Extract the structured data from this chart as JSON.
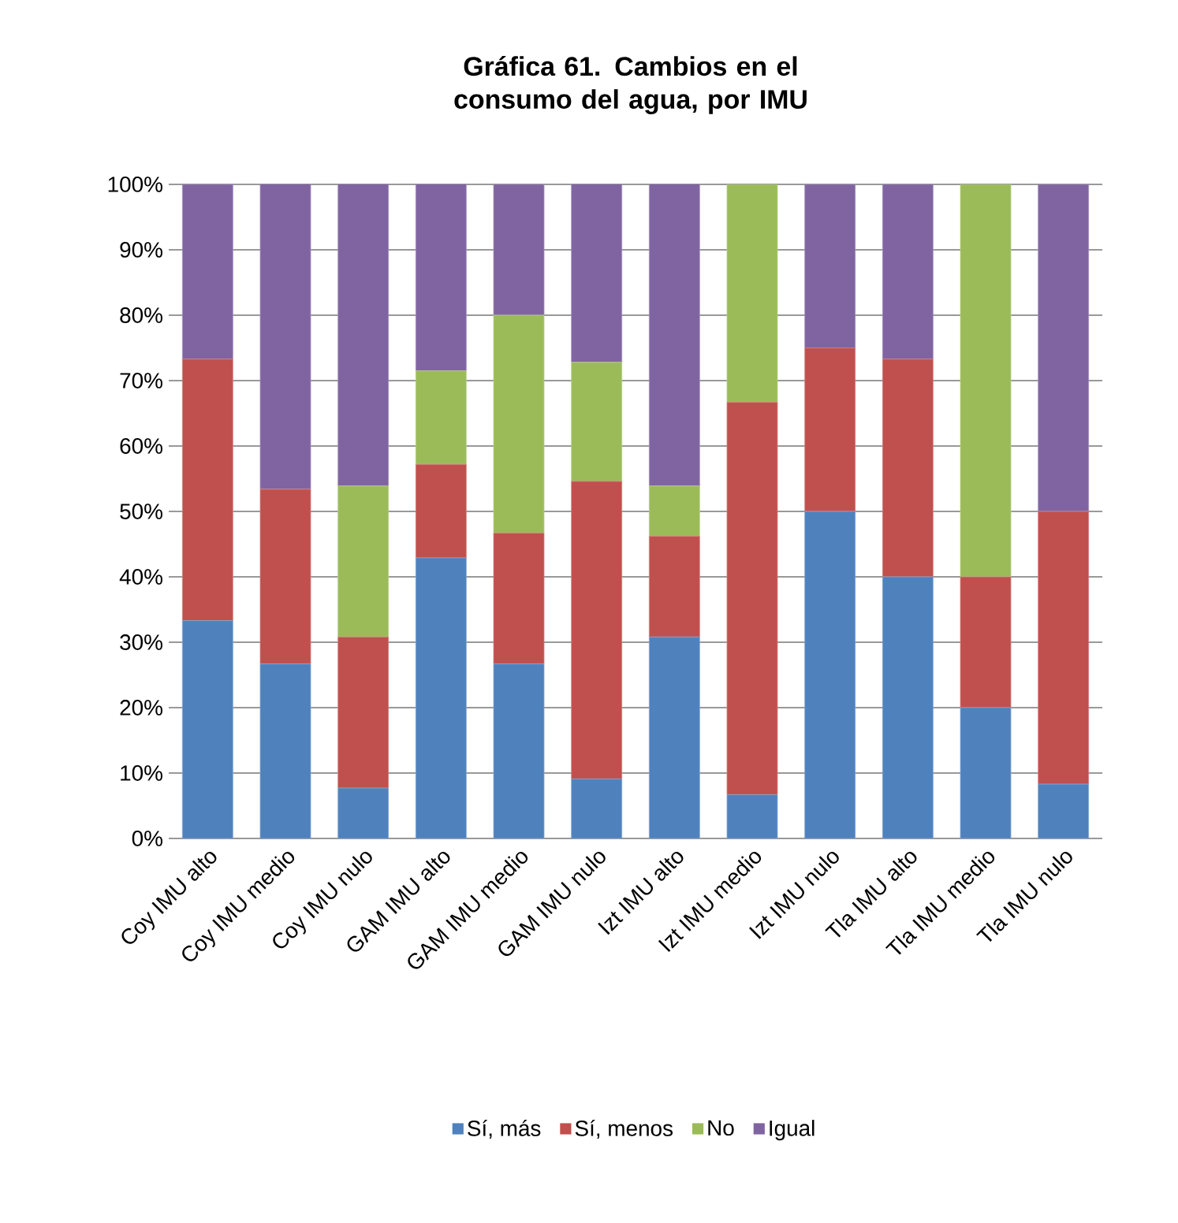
{
  "chart_data": {
    "type": "bar",
    "stacked": true,
    "title": "Gráfica 61. Cambios en el consumo del agua, por IMU",
    "categories": [
      "Coy IMU alto",
      "Coy IMU medio",
      "Coy IMU nulo",
      "GAM IMU alto",
      "GAM IMU medio",
      "GAM IMU nulo",
      "Izt IMU alto",
      "Izt IMU medio",
      "Izt IMU nulo",
      "Tla IMU alto",
      "Tla IMU medio",
      "Tla IMU nulo"
    ],
    "series": [
      {
        "name": "Sí, más",
        "color": "#4f81bd",
        "values": [
          33.3,
          26.7,
          7.7,
          42.9,
          26.7,
          9.1,
          30.8,
          6.7,
          50,
          40,
          20,
          8.3
        ]
      },
      {
        "name": "Sí, menos",
        "color": "#c0504d",
        "values": [
          40,
          26.7,
          23.1,
          14.3,
          20,
          45.5,
          15.4,
          60,
          25,
          33.3,
          20,
          41.7
        ]
      },
      {
        "name": "No",
        "color": "#9bbb59",
        "values": [
          0,
          0,
          23.1,
          14.3,
          33.3,
          18.2,
          7.7,
          33.3,
          0,
          0,
          60,
          0
        ]
      },
      {
        "name": "Igual",
        "color": "#8064a2",
        "values": [
          26.7,
          46.7,
          46.2,
          28.6,
          20,
          27.3,
          46.2,
          0,
          25,
          26.7,
          0,
          50
        ]
      }
    ],
    "ylim": [
      0,
      100
    ],
    "yticks": [
      {
        "value": 0,
        "label": "0%"
      },
      {
        "value": 10,
        "label": "10%"
      },
      {
        "value": 20,
        "label": "20%"
      },
      {
        "value": 30,
        "label": "30%"
      },
      {
        "value": 40,
        "label": "40%"
      },
      {
        "value": 50,
        "label": "50%"
      },
      {
        "value": 60,
        "label": "60%"
      },
      {
        "value": 70,
        "label": "70%"
      },
      {
        "value": 80,
        "label": "80%"
      },
      {
        "value": 90,
        "label": "90%"
      },
      {
        "value": 100,
        "label": "100%"
      }
    ],
    "grid": "y",
    "legend": "bottom"
  }
}
